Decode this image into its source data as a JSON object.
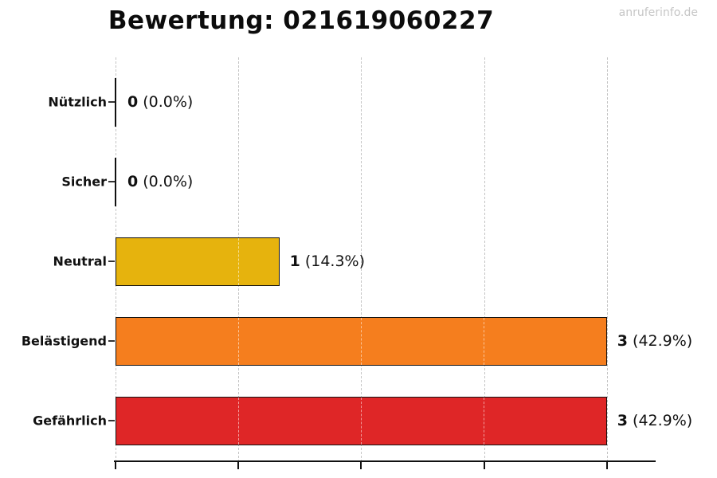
{
  "watermark": "anruferinfo.de",
  "chart_data": {
    "type": "bar",
    "orientation": "horizontal",
    "title": "Bewertung: 021619060227",
    "categories": [
      "Nützlich",
      "Sicher",
      "Neutral",
      "Belästigend",
      "Gefährlich"
    ],
    "values": [
      0,
      0,
      1,
      3,
      3
    ],
    "value_labels": [
      {
        "count": "0",
        "pct": "(0.0%)"
      },
      {
        "count": "0",
        "pct": "(0.0%)"
      },
      {
        "count": "1",
        "pct": "(14.3%)"
      },
      {
        "count": "3",
        "pct": "(42.9%)"
      },
      {
        "count": "3",
        "pct": "(42.9%)"
      }
    ],
    "bar_colors": [
      "none",
      "none",
      "#E6B30D",
      "#F57E1E",
      "#DF2627"
    ],
    "bar_outline_color": "#111111",
    "xlabel": "",
    "ylabel": "",
    "xlim": [
      0,
      3.3
    ],
    "xticks": [
      0,
      0.75,
      1.5,
      2.25,
      3.0
    ],
    "x_tick_labels": [],
    "grid": "vertical-dashed",
    "gridline_color": "#c4c4c4",
    "legend": "none",
    "background": "#ffffff"
  }
}
